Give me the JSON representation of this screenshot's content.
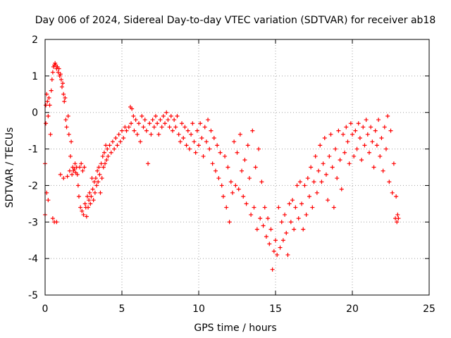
{
  "chart_data": {
    "type": "scatter",
    "title": "Day 006 of 2024, Sidereal Day-to-day VTEC variation (SDTVAR) for receiver ab18",
    "xlabel": "GPS time / hours",
    "ylabel": "SDTVAR / TECUs",
    "xlim": [
      0,
      25
    ],
    "ylim": [
      -5,
      2
    ],
    "xticks": [
      0,
      5,
      10,
      15,
      20,
      25
    ],
    "yticks": [
      -5,
      -4,
      -3,
      -2,
      -1,
      0,
      1,
      2
    ],
    "grid": true,
    "marker": "+",
    "color": "#ff0000",
    "series": [
      {
        "name": "SDTVAR",
        "points": [
          [
            0.0,
            -1.4
          ],
          [
            0.0,
            -2.8
          ],
          [
            0.05,
            0.2
          ],
          [
            0.05,
            -0.3
          ],
          [
            0.1,
            0.5
          ],
          [
            0.1,
            -2.2
          ],
          [
            0.15,
            0.3
          ],
          [
            0.2,
            -0.1
          ],
          [
            0.2,
            -2.4
          ],
          [
            0.25,
            0.4
          ],
          [
            0.3,
            0.2
          ],
          [
            0.35,
            -0.6
          ],
          [
            0.4,
            0.6
          ],
          [
            0.45,
            0.9
          ],
          [
            0.5,
            1.1
          ],
          [
            0.5,
            -2.9
          ],
          [
            0.55,
            1.25
          ],
          [
            0.6,
            1.3
          ],
          [
            0.6,
            -3.0
          ],
          [
            0.65,
            1.35
          ],
          [
            0.7,
            1.3
          ],
          [
            0.75,
            1.2
          ],
          [
            0.75,
            -3.0
          ],
          [
            0.8,
            1.25
          ],
          [
            0.85,
            1.1
          ],
          [
            0.9,
            1.2
          ],
          [
            0.95,
            1.0
          ],
          [
            1.0,
            1.05
          ],
          [
            1.0,
            -1.7
          ],
          [
            1.05,
            0.9
          ],
          [
            1.1,
            0.7
          ],
          [
            1.15,
            0.8
          ],
          [
            1.2,
            0.5
          ],
          [
            1.2,
            -1.8
          ],
          [
            1.25,
            0.3
          ],
          [
            1.3,
            0.4
          ],
          [
            1.35,
            -0.2
          ],
          [
            1.4,
            -0.4
          ],
          [
            1.45,
            -1.75
          ],
          [
            1.5,
            -0.1
          ],
          [
            1.55,
            -0.6
          ],
          [
            1.6,
            -1.6
          ],
          [
            1.65,
            -1.2
          ],
          [
            1.7,
            -0.8
          ],
          [
            1.75,
            -1.7
          ],
          [
            1.8,
            -1.5
          ],
          [
            1.85,
            -1.6
          ],
          [
            1.9,
            -1.55
          ],
          [
            1.95,
            -1.4
          ],
          [
            2.0,
            -1.65
          ],
          [
            2.05,
            -1.5
          ],
          [
            2.1,
            -1.7
          ],
          [
            2.15,
            -2.0
          ],
          [
            2.2,
            -2.3
          ],
          [
            2.25,
            -1.5
          ],
          [
            2.3,
            -2.6
          ],
          [
            2.35,
            -1.4
          ],
          [
            2.4,
            -2.7
          ],
          [
            2.45,
            -1.6
          ],
          [
            2.5,
            -2.8
          ],
          [
            2.55,
            -1.5
          ],
          [
            2.6,
            -2.5
          ],
          [
            2.65,
            -2.6
          ],
          [
            2.7,
            -2.85
          ],
          [
            2.75,
            -2.3
          ],
          [
            2.8,
            -2.6
          ],
          [
            2.85,
            -2.4
          ],
          [
            2.9,
            -2.2
          ],
          [
            2.95,
            -2.5
          ],
          [
            3.0,
            -2.3
          ],
          [
            3.05,
            -1.8
          ],
          [
            3.1,
            -2.1
          ],
          [
            3.15,
            -2.4
          ],
          [
            3.2,
            -1.9
          ],
          [
            3.25,
            -2.2
          ],
          [
            3.3,
            -1.8
          ],
          [
            3.35,
            -2.0
          ],
          [
            3.4,
            -1.6
          ],
          [
            3.45,
            -1.9
          ],
          [
            3.5,
            -1.5
          ],
          [
            3.55,
            -1.7
          ],
          [
            3.6,
            -2.2
          ],
          [
            3.65,
            -1.4
          ],
          [
            3.7,
            -1.8
          ],
          [
            3.75,
            -1.2
          ],
          [
            3.8,
            -1.5
          ],
          [
            3.85,
            -1.1
          ],
          [
            3.9,
            -1.4
          ],
          [
            3.95,
            -0.9
          ],
          [
            4.0,
            -1.3
          ],
          [
            4.05,
            -1.0
          ],
          [
            4.1,
            -1.2
          ],
          [
            4.2,
            -0.9
          ],
          [
            4.3,
            -1.1
          ],
          [
            4.4,
            -0.8
          ],
          [
            4.5,
            -1.0
          ],
          [
            4.6,
            -0.7
          ],
          [
            4.7,
            -0.9
          ],
          [
            4.8,
            -0.6
          ],
          [
            4.9,
            -0.8
          ],
          [
            5.0,
            -0.5
          ],
          [
            5.1,
            -0.7
          ],
          [
            5.2,
            -0.4
          ],
          [
            5.3,
            -0.5
          ],
          [
            5.45,
            -0.4
          ],
          [
            5.55,
            0.15
          ],
          [
            5.6,
            -0.3
          ],
          [
            5.65,
            0.1
          ],
          [
            5.75,
            -0.1
          ],
          [
            5.8,
            -0.5
          ],
          [
            5.9,
            -0.2
          ],
          [
            6.0,
            -0.6
          ],
          [
            6.1,
            -0.3
          ],
          [
            6.2,
            -0.8
          ],
          [
            6.3,
            -0.1
          ],
          [
            6.4,
            -0.4
          ],
          [
            6.5,
            -0.2
          ],
          [
            6.6,
            -0.5
          ],
          [
            6.7,
            -1.4
          ],
          [
            6.8,
            -0.3
          ],
          [
            6.9,
            -0.6
          ],
          [
            7.0,
            -0.2
          ],
          [
            7.1,
            -0.4
          ],
          [
            7.2,
            -0.1
          ],
          [
            7.3,
            -0.3
          ],
          [
            7.4,
            -0.6
          ],
          [
            7.5,
            -0.2
          ],
          [
            7.6,
            -0.4
          ],
          [
            7.7,
            -0.1
          ],
          [
            7.8,
            -0.3
          ],
          [
            7.9,
            0.0
          ],
          [
            8.0,
            -0.2
          ],
          [
            8.1,
            -0.4
          ],
          [
            8.2,
            -0.1
          ],
          [
            8.3,
            -0.5
          ],
          [
            8.4,
            -0.2
          ],
          [
            8.5,
            -0.4
          ],
          [
            8.6,
            -0.1
          ],
          [
            8.7,
            -0.6
          ],
          [
            8.8,
            -0.8
          ],
          [
            8.9,
            -0.3
          ],
          [
            9.0,
            -0.7
          ],
          [
            9.1,
            -0.4
          ],
          [
            9.2,
            -0.9
          ],
          [
            9.3,
            -0.5
          ],
          [
            9.4,
            -1.0
          ],
          [
            9.5,
            -0.6
          ],
          [
            9.6,
            -0.3
          ],
          [
            9.7,
            -0.8
          ],
          [
            9.8,
            -1.1
          ],
          [
            9.9,
            -0.5
          ],
          [
            10.0,
            -0.9
          ],
          [
            10.1,
            -0.3
          ],
          [
            10.2,
            -0.7
          ],
          [
            10.3,
            -1.2
          ],
          [
            10.4,
            -0.4
          ],
          [
            10.5,
            -0.8
          ],
          [
            10.6,
            -0.2
          ],
          [
            10.7,
            -1.0
          ],
          [
            10.8,
            -0.5
          ],
          [
            10.9,
            -1.4
          ],
          [
            11.0,
            -0.7
          ],
          [
            11.1,
            -1.6
          ],
          [
            11.2,
            -0.9
          ],
          [
            11.3,
            -1.8
          ],
          [
            11.4,
            -1.1
          ],
          [
            11.5,
            -2.0
          ],
          [
            11.6,
            -2.3
          ],
          [
            11.7,
            -1.2
          ],
          [
            11.8,
            -2.6
          ],
          [
            11.9,
            -1.5
          ],
          [
            12.0,
            -3.0
          ],
          [
            12.1,
            -1.9
          ],
          [
            12.2,
            -2.2
          ],
          [
            12.3,
            -0.8
          ],
          [
            12.4,
            -2.0
          ],
          [
            12.5,
            -1.1
          ],
          [
            12.6,
            -2.1
          ],
          [
            12.7,
            -0.6
          ],
          [
            12.8,
            -1.6
          ],
          [
            12.9,
            -2.3
          ],
          [
            13.0,
            -1.3
          ],
          [
            13.1,
            -2.5
          ],
          [
            13.2,
            -0.9
          ],
          [
            13.3,
            -1.8
          ],
          [
            13.4,
            -2.8
          ],
          [
            13.5,
            -0.5
          ],
          [
            13.6,
            -2.6
          ],
          [
            13.7,
            -1.5
          ],
          [
            13.8,
            -3.2
          ],
          [
            13.9,
            -1.0
          ],
          [
            14.0,
            -2.9
          ],
          [
            14.1,
            -1.9
          ],
          [
            14.2,
            -3.1
          ],
          [
            14.3,
            -2.6
          ],
          [
            14.4,
            -3.4
          ],
          [
            14.5,
            -2.9
          ],
          [
            14.6,
            -3.6
          ],
          [
            14.7,
            -3.2
          ],
          [
            14.8,
            -4.3
          ],
          [
            14.9,
            -3.8
          ],
          [
            15.0,
            -3.5
          ],
          [
            15.1,
            -3.9
          ],
          [
            15.2,
            -2.6
          ],
          [
            15.3,
            -3.7
          ],
          [
            15.4,
            -3.0
          ],
          [
            15.5,
            -3.5
          ],
          [
            15.6,
            -2.8
          ],
          [
            15.7,
            -3.3
          ],
          [
            15.8,
            -3.9
          ],
          [
            15.9,
            -2.5
          ],
          [
            16.0,
            -3.0
          ],
          [
            16.1,
            -2.4
          ],
          [
            16.2,
            -3.2
          ],
          [
            16.3,
            -2.6
          ],
          [
            16.4,
            -2.0
          ],
          [
            16.5,
            -2.9
          ],
          [
            16.6,
            -1.9
          ],
          [
            16.7,
            -2.5
          ],
          [
            16.8,
            -3.2
          ],
          [
            16.9,
            -2.0
          ],
          [
            17.0,
            -2.8
          ],
          [
            17.1,
            -1.8
          ],
          [
            17.2,
            -2.3
          ],
          [
            17.3,
            -1.5
          ],
          [
            17.4,
            -2.6
          ],
          [
            17.5,
            -1.9
          ],
          [
            17.6,
            -1.2
          ],
          [
            17.7,
            -2.2
          ],
          [
            17.8,
            -1.6
          ],
          [
            17.9,
            -0.9
          ],
          [
            18.0,
            -1.9
          ],
          [
            18.1,
            -1.4
          ],
          [
            18.2,
            -0.7
          ],
          [
            18.3,
            -1.7
          ],
          [
            18.4,
            -2.4
          ],
          [
            18.5,
            -1.2
          ],
          [
            18.6,
            -0.6
          ],
          [
            18.7,
            -1.5
          ],
          [
            18.8,
            -2.6
          ],
          [
            18.9,
            -1.0
          ],
          [
            19.0,
            -1.8
          ],
          [
            19.1,
            -0.5
          ],
          [
            19.2,
            -1.3
          ],
          [
            19.3,
            -2.1
          ],
          [
            19.4,
            -0.6
          ],
          [
            19.5,
            -1.1
          ],
          [
            19.6,
            -0.4
          ],
          [
            19.7,
            -0.8
          ],
          [
            19.8,
            -1.4
          ],
          [
            19.9,
            -0.3
          ],
          [
            20.0,
            -0.6
          ],
          [
            20.1,
            -1.2
          ],
          [
            20.2,
            -0.5
          ],
          [
            20.3,
            -1.0
          ],
          [
            20.4,
            -0.3
          ],
          [
            20.5,
            -0.7
          ],
          [
            20.6,
            -1.3
          ],
          [
            20.7,
            -0.4
          ],
          [
            20.8,
            -0.9
          ],
          [
            20.9,
            -0.2
          ],
          [
            21.0,
            -0.6
          ],
          [
            21.1,
            -1.1
          ],
          [
            21.2,
            -0.4
          ],
          [
            21.3,
            -0.8
          ],
          [
            21.4,
            -1.5
          ],
          [
            21.5,
            -0.5
          ],
          [
            21.6,
            -0.9
          ],
          [
            21.7,
            -0.2
          ],
          [
            21.8,
            -1.2
          ],
          [
            21.9,
            -0.7
          ],
          [
            22.0,
            -1.6
          ],
          [
            22.1,
            -0.4
          ],
          [
            22.2,
            -1.0
          ],
          [
            22.3,
            -0.1
          ],
          [
            22.4,
            -1.9
          ],
          [
            22.5,
            -0.5
          ],
          [
            22.6,
            -2.2
          ],
          [
            22.7,
            -1.4
          ],
          [
            22.8,
            -2.9
          ],
          [
            22.85,
            -2.3
          ],
          [
            22.9,
            -3.0
          ],
          [
            22.95,
            -2.8
          ],
          [
            23.0,
            -2.9
          ]
        ]
      }
    ]
  }
}
